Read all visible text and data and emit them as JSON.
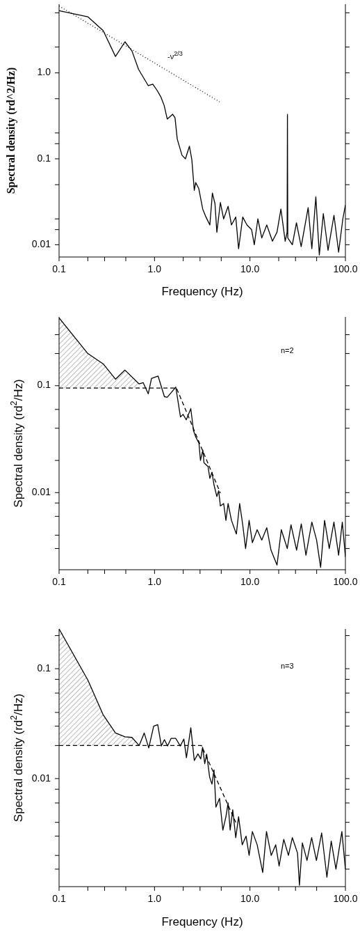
{
  "chart_data": [
    {
      "type": "line",
      "xlabel": "Frequency (Hz)",
      "ylabel": "Spectral density (rd^2/Hz)",
      "log": "xy",
      "xlim": [
        0.1,
        100
      ],
      "ylim": [
        0.0072,
        6.3
      ],
      "xticks": [
        {
          "value": 0.1,
          "label": "0.1"
        },
        {
          "value": 0.2,
          "label": null
        },
        {
          "value": 0.3,
          "label": null
        },
        {
          "value": 0.5,
          "label": null
        },
        {
          "value": 1,
          "label": "1.0"
        },
        {
          "value": 2,
          "label": null
        },
        {
          "value": 3,
          "label": null
        },
        {
          "value": 5,
          "label": null
        },
        {
          "value": 10,
          "label": "10.0"
        },
        {
          "value": 20,
          "label": null
        },
        {
          "value": 30,
          "label": null
        },
        {
          "value": 50,
          "label": null
        },
        {
          "value": 100,
          "label": "100.0"
        }
      ],
      "yticks": [
        {
          "value": 0.01,
          "label": "0.01"
        },
        {
          "value": 0.015,
          "label": null
        },
        {
          "value": 0.02,
          "label": null
        },
        {
          "value": 0.05,
          "label": null
        },
        {
          "value": 0.1,
          "label": "0.1"
        },
        {
          "value": 0.15,
          "label": null
        },
        {
          "value": 0.2,
          "label": null
        },
        {
          "value": 0.5,
          "label": null
        },
        {
          "value": 1,
          "label": "1.0"
        },
        {
          "value": 2,
          "label": null
        },
        {
          "value": 5,
          "label": null
        }
      ],
      "annotations": [
        "-ν$^{2/3}$"
      ],
      "series": [
        {
          "color": "#000000",
          "x": [
            0.1,
            0.2,
            0.29,
            0.39,
            0.49,
            0.58,
            0.68,
            0.86,
            0.96,
            1.07,
            1.17,
            1.26,
            1.36,
            1.55,
            1.64,
            1.73,
            1.94,
            2.11,
            2.32,
            2.46,
            2.61,
            2.7,
            2.91,
            3.2,
            3.46,
            3.8,
            4.04,
            4.3,
            4.5,
            4.9,
            5.3,
            5.9,
            6.4,
            7.1,
            7.6,
            8.4,
            9.3,
            10.4,
            11.1,
            12.1,
            13.3,
            15,
            17.2,
            19.2,
            21.1,
            23.4,
            24.5,
            24.7,
            24.9,
            27.8,
            30.7,
            34.4,
            40.7,
            44.5,
            49,
            53.3,
            58.7,
            65.8,
            75.9,
            84.9,
            94,
            100
          ],
          "values": [
            5.3,
            4.5,
            3.1,
            1.55,
            2.3,
            1.8,
            1.1,
            0.71,
            0.74,
            0.62,
            0.52,
            0.42,
            0.29,
            0.33,
            0.3,
            0.17,
            0.11,
            0.1,
            0.14,
            0.098,
            0.043,
            0.053,
            0.045,
            0.026,
            0.021,
            0.017,
            0.04,
            0.03,
            0.014,
            0.031,
            0.02,
            0.028,
            0.017,
            0.021,
            0.009,
            0.021,
            0.017,
            0.015,
            0.01,
            0.02,
            0.012,
            0.017,
            0.011,
            0.014,
            0.026,
            0.011,
            0.014,
            0.33,
            0.012,
            0.01,
            0.018,
            0.0095,
            0.027,
            0.009,
            0.036,
            0.0076,
            0.023,
            0.0086,
            0.022,
            0.0082,
            0.02,
            0.029
          ]
        },
        {
          "color": "#000000",
          "line_style": "dotted",
          "x": [
            0.1,
            4.8
          ],
          "values": [
            6.0,
            0.46
          ]
        }
      ]
    },
    {
      "type": "line",
      "ylabel": "Spectral density (rd$^{2}$/Hz)",
      "log": "xy",
      "xlim": [
        0.1,
        100
      ],
      "ylim": [
        0.0019,
        0.44
      ],
      "xticks": [
        {
          "value": 0.1,
          "label": "0.1"
        },
        {
          "value": 0.2,
          "label": null
        },
        {
          "value": 0.3,
          "label": null
        },
        {
          "value": 0.5,
          "label": null
        },
        {
          "value": 1,
          "label": "1.0"
        },
        {
          "value": 2,
          "label": null
        },
        {
          "value": 3,
          "label": null
        },
        {
          "value": 5,
          "label": null
        },
        {
          "value": 10,
          "label": "10.0"
        },
        {
          "value": 20,
          "label": null
        },
        {
          "value": 30,
          "label": null
        },
        {
          "value": 50,
          "label": null
        },
        {
          "value": 100,
          "label": "100.0"
        }
      ],
      "yticks": [
        {
          "value": 0.003,
          "label": null
        },
        {
          "value": 0.004,
          "label": null
        },
        {
          "value": 0.006,
          "label": null
        },
        {
          "value": 0.008,
          "label": null
        },
        {
          "value": 0.01,
          "label": "0.01"
        },
        {
          "value": 0.02,
          "label": null
        },
        {
          "value": 0.04,
          "label": null
        },
        {
          "value": 0.06,
          "label": null
        },
        {
          "value": 0.1,
          "label": "0.1"
        },
        {
          "value": 0.2,
          "label": null
        },
        {
          "value": 0.3,
          "label": null
        }
      ],
      "annotations": [
        "n=2"
      ],
      "series": [
        {
          "color": "#000000",
          "x": [
            0.1,
            0.2,
            0.29,
            0.39,
            0.49,
            0.69,
            0.76,
            0.86,
            0.93,
            1.09,
            1.27,
            1.36,
            1.67,
            1.87,
            1.99,
            2.15,
            2.4,
            2.56,
            2.71,
            2.92,
            3.03,
            3.21,
            3.3,
            3.64,
            3.8,
            4,
            4.2,
            4.5,
            4.7,
            4.9,
            5.3,
            5.6,
            5.9,
            6.4,
            7.2,
            7.8,
            8.4,
            9,
            9.8,
            10.6,
            11.9,
            13.3,
            15,
            16.6,
            19.2,
            21.3,
            24.6,
            26.9,
            30.8,
            34.5,
            38.6,
            44.5,
            49.9,
            55,
            60.5,
            67.7,
            75.8,
            84.9,
            92.8,
            100
          ],
          "values": [
            0.43,
            0.2,
            0.16,
            0.115,
            0.14,
            0.104,
            0.107,
            0.084,
            0.117,
            0.123,
            0.079,
            0.078,
            0.097,
            0.051,
            0.054,
            0.048,
            0.061,
            0.038,
            0.033,
            0.029,
            0.02,
            0.025,
            0.019,
            0.0175,
            0.0136,
            0.0155,
            0.0118,
            0.0092,
            0.0104,
            0.0075,
            0.0079,
            0.0055,
            0.0079,
            0.0055,
            0.0041,
            0.0079,
            0.005,
            0.003,
            0.0055,
            0.0034,
            0.0045,
            0.0036,
            0.0047,
            0.0029,
            0.0021,
            0.0045,
            0.003,
            0.005,
            0.0029,
            0.0051,
            0.0026,
            0.0053,
            0.0036,
            0.002,
            0.0055,
            0.003,
            0.0053,
            0.0026,
            0.0053,
            0.0025
          ],
          "lower": [
            0.095,
            0.095,
            0.095,
            0.095,
            0.095,
            0.095,
            null,
            null,
            null,
            null,
            null,
            null,
            null,
            null,
            null,
            null,
            null,
            null,
            null,
            null,
            null,
            null,
            null,
            null,
            null,
            null,
            null,
            null,
            null,
            null,
            null,
            null,
            null,
            null,
            null,
            null,
            null,
            null,
            null,
            null,
            null,
            null,
            null,
            null,
            null,
            null,
            null,
            null,
            null,
            null,
            null,
            null,
            null,
            null,
            null,
            null,
            null,
            null,
            null,
            null
          ],
          "upper": [
            0.43,
            0.2,
            0.16,
            0.115,
            0.14,
            0.104,
            null,
            null,
            null,
            null,
            null,
            null,
            null,
            null,
            null,
            null,
            null,
            null,
            null,
            null,
            null,
            null,
            null,
            null,
            null,
            null,
            null,
            null,
            null,
            null,
            null,
            null,
            null,
            null,
            null,
            null,
            null,
            null,
            null,
            null,
            null,
            null,
            null,
            null,
            null,
            null,
            null,
            null,
            null,
            null,
            null,
            null,
            null,
            null,
            null,
            null,
            null,
            null,
            null,
            null
          ]
        },
        {
          "color": "#000000",
          "line_style": "dashed",
          "x": [
            0.1,
            1.7,
            4.9
          ],
          "values": [
            0.095,
            0.095,
            0.0099
          ]
        }
      ]
    },
    {
      "type": "line",
      "xlabel": "Frequency (Hz)",
      "ylabel": "Spectral density (rd$^{2}$/Hz)",
      "log": "xy",
      "xlim": [
        0.1,
        100
      ],
      "ylim": [
        0.00104,
        0.23
      ],
      "xticks": [
        {
          "value": 0.1,
          "label": "0.1"
        },
        {
          "value": 0.2,
          "label": null
        },
        {
          "value": 0.3,
          "label": null
        },
        {
          "value": 0.5,
          "label": null
        },
        {
          "value": 1,
          "label": "1.0"
        },
        {
          "value": 2,
          "label": null
        },
        {
          "value": 3,
          "label": null
        },
        {
          "value": 5,
          "label": null
        },
        {
          "value": 10,
          "label": "10.0"
        },
        {
          "value": 20,
          "label": null
        },
        {
          "value": 30,
          "label": null
        },
        {
          "value": 50,
          "label": null
        },
        {
          "value": 100,
          "label": "100.0"
        }
      ],
      "yticks": [
        {
          "value": 0.0015,
          "label": null
        },
        {
          "value": 0.002,
          "label": null
        },
        {
          "value": 0.003,
          "label": null
        },
        {
          "value": 0.004,
          "label": null
        },
        {
          "value": 0.006,
          "label": null
        },
        {
          "value": 0.008,
          "label": null
        },
        {
          "value": 0.01,
          "label": "0.01"
        },
        {
          "value": 0.02,
          "label": null
        },
        {
          "value": 0.03,
          "label": null
        },
        {
          "value": 0.04,
          "label": null
        },
        {
          "value": 0.06,
          "label": null
        },
        {
          "value": 0.08,
          "label": null
        },
        {
          "value": 0.1,
          "label": "0.1"
        },
        {
          "value": 0.2,
          "label": null
        }
      ],
      "annotations": [
        "n=3"
      ],
      "series": [
        {
          "color": "#000000",
          "x": [
            0.1,
            0.2,
            0.29,
            0.39,
            0.49,
            0.58,
            0.69,
            0.78,
            0.87,
            0.98,
            1.08,
            1.18,
            1.27,
            1.37,
            1.49,
            1.67,
            1.86,
            2.03,
            2.16,
            2.4,
            2.61,
            2.85,
            3.05,
            3.19,
            3.36,
            3.52,
            3.78,
            4,
            4.2,
            4.4,
            4.8,
            5.2,
            5.6,
            5.9,
            6.2,
            6.6,
            7.1,
            7.6,
            8.3,
            9.1,
            9.8,
            10.6,
            11.9,
            13.6,
            14.9,
            16.7,
            18.6,
            20.2,
            22.6,
            25.3,
            27.8,
            31.5,
            33,
            35.4,
            39.6,
            44.3,
            49.7,
            56.4,
            64,
            71,
            79.6,
            91.8,
            100
          ],
          "values": [
            0.23,
            0.079,
            0.038,
            0.026,
            0.024,
            0.0237,
            0.02,
            0.026,
            0.019,
            0.03,
            0.031,
            0.0198,
            0.0226,
            0.0198,
            0.0232,
            0.0232,
            0.0198,
            0.0229,
            0.0155,
            0.029,
            0.0146,
            0.0168,
            0.0151,
            0.0193,
            0.0137,
            0.0167,
            0.0103,
            0.0089,
            0.012,
            0.0055,
            0.0066,
            0.0034,
            0.0045,
            0.006,
            0.0034,
            0.0052,
            0.0029,
            0.0045,
            0.0025,
            0.003,
            0.002,
            0.0033,
            0.0025,
            0.0014,
            0.0033,
            0.002,
            0.0025,
            0.0016,
            0.0028,
            0.002,
            0.0029,
            0.0021,
            0.00107,
            0.0026,
            0.0018,
            0.0029,
            0.0018,
            0.0032,
            0.00127,
            0.0027,
            0.0015,
            0.0033,
            0.0015
          ],
          "lower": [
            0.02,
            0.02,
            0.02,
            0.02,
            0.02,
            0.02,
            0.02,
            null,
            null,
            null,
            null,
            null,
            null,
            null,
            null,
            null,
            null,
            null,
            null,
            null,
            null,
            null,
            null,
            null,
            null,
            null,
            null,
            null,
            null,
            null,
            null,
            null,
            null,
            null,
            null,
            null,
            null,
            null,
            null,
            null,
            null,
            null,
            null,
            null,
            null,
            null,
            null,
            null,
            null,
            null,
            null,
            null,
            null,
            null,
            null,
            null,
            null,
            null,
            null,
            null,
            null,
            null,
            null
          ],
          "upper": [
            0.23,
            0.079,
            0.038,
            0.026,
            0.024,
            0.0237,
            0.02,
            null,
            null,
            null,
            null,
            null,
            null,
            null,
            null,
            null,
            null,
            null,
            null,
            null,
            null,
            null,
            null,
            null,
            null,
            null,
            null,
            null,
            null,
            null,
            null,
            null,
            null,
            null,
            null,
            null,
            null,
            null,
            null,
            null,
            null,
            null,
            null,
            null,
            null,
            null,
            null,
            null,
            null,
            null,
            null,
            null,
            null,
            null,
            null,
            null,
            null,
            null,
            null,
            null,
            null,
            null,
            null
          ]
        },
        {
          "color": "#000000",
          "line_style": "dashed",
          "x": [
            0.1,
            3.1,
            7.1
          ],
          "values": [
            0.02,
            0.02,
            0.004
          ]
        }
      ]
    }
  ]
}
